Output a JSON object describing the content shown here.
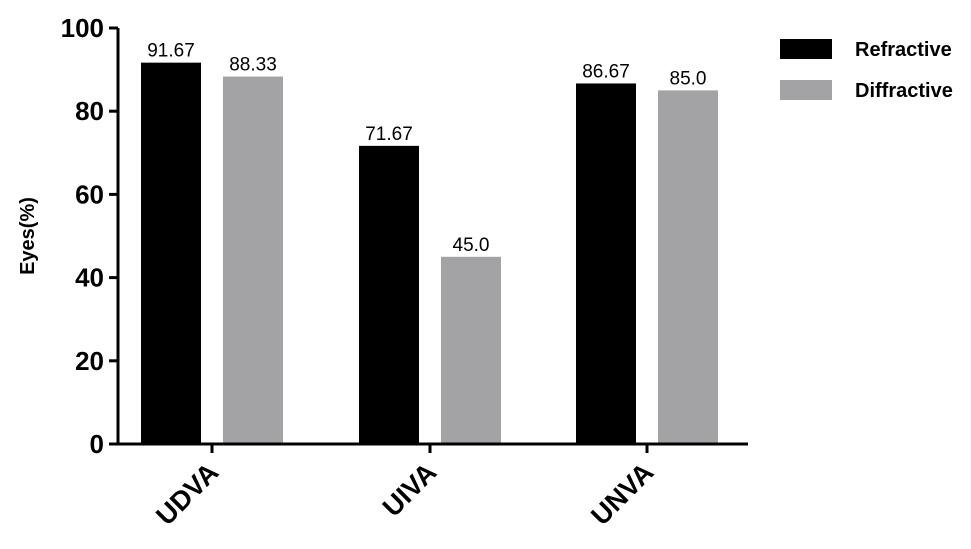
{
  "chart_data": {
    "type": "bar",
    "title": "",
    "xlabel": "",
    "ylabel": "Eyes(%)",
    "ylim": [
      0,
      100
    ],
    "yticks": [
      0,
      20,
      40,
      60,
      80,
      100
    ],
    "grid": false,
    "legend_position": "top-right",
    "categories": [
      "UDVA",
      "UIVA",
      "UNVA"
    ],
    "series": [
      {
        "name": "Refractive",
        "color": "#000000",
        "values": [
          91.67,
          71.67,
          86.67
        ],
        "labels": [
          "91.67",
          "71.67",
          "86.67"
        ]
      },
      {
        "name": "Diffractive",
        "color": "#a3a3a6",
        "values": [
          88.33,
          45.0,
          85.0
        ],
        "labels": [
          "88.33",
          "45.0",
          "85.0"
        ]
      }
    ]
  }
}
